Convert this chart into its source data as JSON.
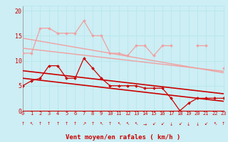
{
  "x": [
    0,
    1,
    2,
    3,
    4,
    5,
    6,
    7,
    8,
    9,
    10,
    11,
    12,
    13,
    14,
    15,
    16,
    17,
    18,
    19,
    20,
    21,
    22,
    23
  ],
  "series": [
    {
      "name": "reg1_light",
      "color": "#f0a0a0",
      "linewidth": 1.0,
      "marker": null,
      "markersize": 0,
      "y": [
        12.5,
        12.3,
        12.1,
        11.9,
        11.7,
        11.5,
        11.3,
        11.1,
        10.9,
        10.7,
        10.5,
        10.3,
        10.1,
        9.9,
        9.7,
        9.5,
        9.3,
        9.1,
        8.9,
        8.7,
        8.5,
        8.3,
        8.1,
        7.9
      ]
    },
    {
      "name": "reg2_light",
      "color": "#f0a0a0",
      "linewidth": 1.0,
      "marker": null,
      "markersize": 0,
      "y": [
        14.5,
        14.2,
        13.9,
        13.6,
        13.3,
        13.0,
        12.7,
        12.4,
        12.1,
        11.8,
        11.5,
        11.2,
        10.9,
        10.6,
        10.3,
        10.0,
        9.7,
        9.4,
        9.1,
        8.8,
        8.5,
        8.2,
        7.9,
        7.6
      ]
    },
    {
      "name": "jagged_light",
      "color": "#f0a0a0",
      "linewidth": 0.9,
      "marker": "D",
      "markersize": 2.0,
      "y": [
        11.5,
        11.5,
        16.5,
        16.5,
        15.5,
        15.5,
        15.5,
        18.0,
        15.0,
        15.0,
        11.5,
        11.5,
        11.0,
        13.0,
        13.0,
        11.0,
        13.0,
        13.0,
        null,
        null,
        13.0,
        13.0,
        null,
        8.5
      ]
    },
    {
      "name": "reg1_dark",
      "color": "#cc0000",
      "linewidth": 1.2,
      "marker": null,
      "markersize": 0,
      "y": [
        6.5,
        6.3,
        6.1,
        5.9,
        5.7,
        5.5,
        5.3,
        5.1,
        4.9,
        4.7,
        4.5,
        4.3,
        4.1,
        3.9,
        3.7,
        3.5,
        3.3,
        3.1,
        2.9,
        2.7,
        2.5,
        2.3,
        2.1,
        1.9
      ]
    },
    {
      "name": "reg2_dark",
      "color": "#cc0000",
      "linewidth": 1.2,
      "marker": null,
      "markersize": 0,
      "y": [
        8.0,
        7.8,
        7.6,
        7.4,
        7.2,
        7.0,
        6.8,
        6.6,
        6.4,
        6.2,
        6.0,
        5.8,
        5.6,
        5.4,
        5.2,
        5.0,
        4.8,
        4.6,
        4.4,
        4.2,
        4.0,
        3.8,
        3.6,
        3.4
      ]
    },
    {
      "name": "jagged_dark",
      "color": "#cc0000",
      "linewidth": 0.9,
      "marker": "D",
      "markersize": 2.0,
      "y": [
        5.0,
        6.0,
        6.5,
        9.0,
        9.0,
        6.5,
        6.5,
        10.5,
        8.5,
        6.5,
        5.0,
        5.0,
        5.0,
        5.0,
        4.5,
        4.5,
        4.5,
        2.5,
        0.0,
        1.5,
        2.5,
        2.5,
        2.5,
        2.5
      ]
    }
  ],
  "xlabel": "Vent moyen/en rafales ( km/h )",
  "xlim": [
    0,
    23
  ],
  "ylim": [
    0,
    21
  ],
  "yticks": [
    0,
    5,
    10,
    15,
    20
  ],
  "xticks": [
    0,
    1,
    2,
    3,
    4,
    5,
    6,
    7,
    8,
    9,
    10,
    11,
    12,
    13,
    14,
    15,
    16,
    17,
    18,
    19,
    20,
    21,
    22,
    23
  ],
  "grid_color": "#b8e8ee",
  "bg_color": "#cceef4",
  "tick_color": "#cc0000",
  "label_color": "#cc0000",
  "xlabel_fontsize": 6.5,
  "ytick_fontsize": 6.0,
  "xtick_fontsize": 5.0,
  "arrow_syms": [
    "↑",
    "↖",
    "↑",
    "↑",
    "↑",
    "↑",
    "↑",
    "↗",
    "↑",
    "↖",
    "↑",
    "↖",
    "↖",
    "↖",
    "→",
    "↙",
    "↙",
    "↓",
    "↙",
    "↓",
    "↓",
    "↙",
    "↖",
    "↑"
  ]
}
